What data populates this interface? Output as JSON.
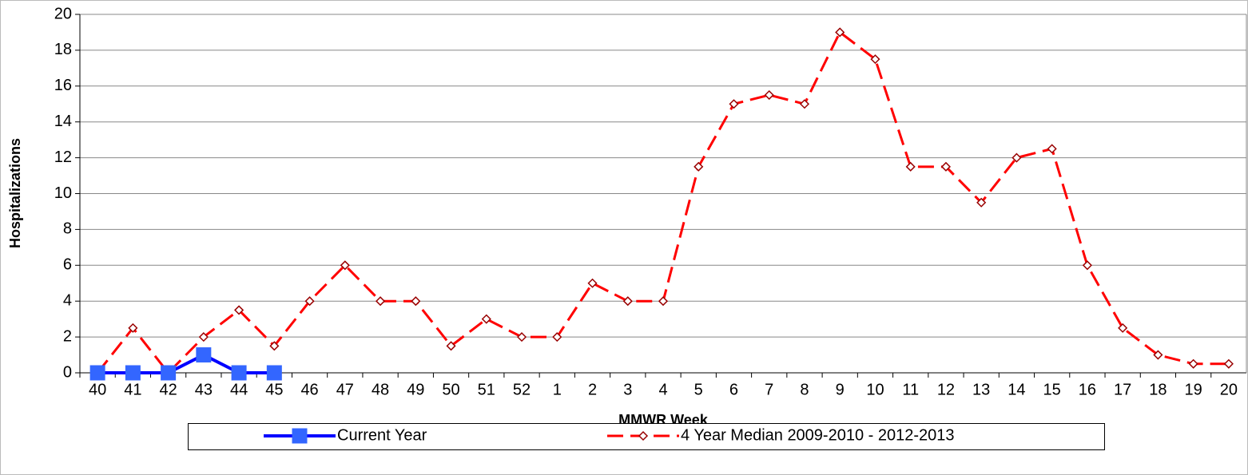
{
  "chart_data": {
    "type": "line",
    "y_label": "Hospitalizations",
    "x_label": "MMWR Week",
    "categories": [
      "40",
      "41",
      "42",
      "43",
      "44",
      "45",
      "46",
      "47",
      "48",
      "49",
      "50",
      "51",
      "52",
      "1",
      "2",
      "3",
      "4",
      "5",
      "6",
      "7",
      "8",
      "9",
      "10",
      "11",
      "12",
      "13",
      "14",
      "15",
      "16",
      "17",
      "18",
      "19",
      "20"
    ],
    "series": [
      {
        "name": "Current Year",
        "color": "#0000ff",
        "marker_color": "#3366ff",
        "values": [
          0,
          0,
          0,
          1,
          0,
          0,
          null,
          null,
          null,
          null,
          null,
          null,
          null,
          null,
          null,
          null,
          null,
          null,
          null,
          null,
          null,
          null,
          null,
          null,
          null,
          null,
          null,
          null,
          null,
          null,
          null,
          null,
          null
        ]
      },
      {
        "name": "4 Year Median 2009-2010 - 2012-2013",
        "color": "#ff0000",
        "marker_color": "#990000",
        "values": [
          0,
          2.5,
          0,
          2,
          3.5,
          1.5,
          4,
          6,
          4,
          4,
          1.5,
          3,
          2,
          2,
          5,
          4,
          4,
          11.5,
          15,
          15.5,
          15,
          19,
          17.5,
          11.5,
          11.5,
          9.5,
          12,
          12.5,
          6,
          2.5,
          1,
          0.5,
          0.5
        ]
      }
    ],
    "ylim": [
      0,
      20
    ],
    "yticks": [
      0,
      2,
      4,
      6,
      8,
      10,
      12,
      14,
      16,
      18,
      20
    ],
    "grid": true
  }
}
